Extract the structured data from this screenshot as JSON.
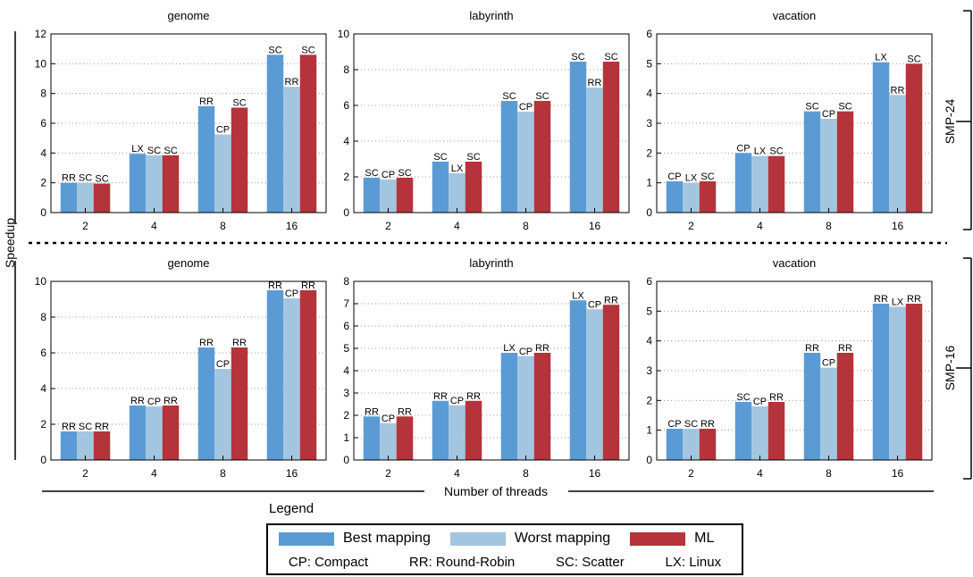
{
  "chart_data": [
    {
      "type": "bar",
      "title": "genome",
      "group": "SMP-24",
      "categories": [
        "2",
        "4",
        "8",
        "16"
      ],
      "ylim": [
        0,
        12
      ],
      "yticks": [
        0,
        2,
        4,
        6,
        8,
        10,
        12
      ],
      "series": [
        {
          "name": "Best mapping",
          "values": [
            2.0,
            3.95,
            7.15,
            10.6
          ],
          "labels": [
            "RR",
            "LX",
            "RR",
            "SC"
          ]
        },
        {
          "name": "Worst mapping",
          "values": [
            2.0,
            3.85,
            5.25,
            8.45
          ],
          "labels": [
            "SC",
            "SC",
            "CP",
            "RR"
          ]
        },
        {
          "name": "ML",
          "values": [
            1.95,
            3.85,
            7.05,
            10.6
          ],
          "labels": [
            "SC",
            "SC",
            "SC",
            "SC"
          ]
        }
      ]
    },
    {
      "type": "bar",
      "title": "labyrinth",
      "group": "SMP-24",
      "categories": [
        "2",
        "4",
        "8",
        "16"
      ],
      "ylim": [
        0,
        10
      ],
      "yticks": [
        0,
        2,
        4,
        6,
        8,
        10
      ],
      "series": [
        {
          "name": "Best mapping",
          "values": [
            1.95,
            2.85,
            6.25,
            8.45
          ],
          "labels": [
            "SC",
            "SC",
            "SC",
            "SC"
          ]
        },
        {
          "name": "Worst mapping",
          "values": [
            1.85,
            2.2,
            5.65,
            7.0
          ],
          "labels": [
            "CP",
            "LX",
            "CP",
            "RR"
          ]
        },
        {
          "name": "ML",
          "values": [
            1.95,
            2.85,
            6.25,
            8.45
          ],
          "labels": [
            "SC",
            "SC",
            "SC",
            "SC"
          ]
        }
      ]
    },
    {
      "type": "bar",
      "title": "vacation",
      "group": "SMP-24",
      "categories": [
        "2",
        "4",
        "8",
        "16"
      ],
      "ylim": [
        0,
        6
      ],
      "yticks": [
        0,
        1,
        2,
        3,
        4,
        5,
        6
      ],
      "series": [
        {
          "name": "Best mapping",
          "values": [
            1.05,
            2.0,
            3.4,
            5.05
          ],
          "labels": [
            "CP",
            "CP",
            "SC",
            "LX"
          ]
        },
        {
          "name": "Worst mapping",
          "values": [
            1.0,
            1.9,
            3.15,
            3.95
          ],
          "labels": [
            "LX",
            "LX",
            "CP",
            "RR"
          ]
        },
        {
          "name": "ML",
          "values": [
            1.05,
            1.9,
            3.4,
            5.0
          ],
          "labels": [
            "SC",
            "SC",
            "SC",
            "SC"
          ]
        }
      ]
    },
    {
      "type": "bar",
      "title": "genome",
      "group": "SMP-16",
      "categories": [
        "2",
        "4",
        "8",
        "16"
      ],
      "ylim": [
        0,
        10
      ],
      "yticks": [
        0,
        2,
        4,
        6,
        8,
        10
      ],
      "series": [
        {
          "name": "Best mapping",
          "values": [
            1.6,
            3.05,
            6.3,
            9.5
          ],
          "labels": [
            "RR",
            "RR",
            "RR",
            "RR"
          ]
        },
        {
          "name": "Worst mapping",
          "values": [
            1.6,
            3.0,
            5.1,
            9.05
          ],
          "labels": [
            "SC",
            "CP",
            "CP",
            "CP"
          ]
        },
        {
          "name": "ML",
          "values": [
            1.6,
            3.05,
            6.3,
            9.5
          ],
          "labels": [
            "RR",
            "RR",
            "RR",
            "RR"
          ]
        }
      ]
    },
    {
      "type": "bar",
      "title": "labyrinth",
      "group": "SMP-16",
      "categories": [
        "2",
        "4",
        "8",
        "16"
      ],
      "ylim": [
        0,
        8
      ],
      "yticks": [
        0,
        1,
        2,
        3,
        4,
        5,
        6,
        7,
        8
      ],
      "series": [
        {
          "name": "Best mapping",
          "values": [
            1.95,
            2.65,
            4.8,
            7.15
          ],
          "labels": [
            "RR",
            "RR",
            "LX",
            "LX"
          ]
        },
        {
          "name": "Worst mapping",
          "values": [
            1.65,
            2.45,
            4.65,
            6.75
          ],
          "labels": [
            "CP",
            "CP",
            "CP",
            "CP"
          ]
        },
        {
          "name": "ML",
          "values": [
            1.95,
            2.65,
            4.8,
            6.95
          ],
          "labels": [
            "RR",
            "RR",
            "RR",
            "RR"
          ]
        }
      ]
    },
    {
      "type": "bar",
      "title": "vacation",
      "group": "SMP-16",
      "categories": [
        "2",
        "4",
        "8",
        "16"
      ],
      "ylim": [
        0,
        6
      ],
      "yticks": [
        0,
        1,
        2,
        3,
        4,
        5,
        6
      ],
      "series": [
        {
          "name": "Best mapping",
          "values": [
            1.05,
            1.95,
            3.6,
            5.25
          ],
          "labels": [
            "CP",
            "SC",
            "RR",
            "RR"
          ]
        },
        {
          "name": "Worst mapping",
          "values": [
            1.05,
            1.8,
            3.1,
            5.15
          ],
          "labels": [
            "SC",
            "CP",
            "CP",
            "LX"
          ]
        },
        {
          "name": "ML",
          "values": [
            1.05,
            1.95,
            3.6,
            5.25
          ],
          "labels": [
            "RR",
            "RR",
            "RR",
            "RR"
          ]
        }
      ]
    }
  ],
  "colors": {
    "best": "#5b9bd5",
    "worst": "#a3c6e0",
    "ml": "#b5333a"
  },
  "ylabel": "Speedup",
  "xlabel": "Number of threads",
  "group_labels": {
    "top": "SMP-24",
    "bottom": "SMP-16"
  },
  "legend": {
    "title": "Legend",
    "items": [
      "Best mapping",
      "Worst mapping",
      "ML"
    ],
    "abbreviations": [
      "CP: Compact",
      "RR: Round-Robin",
      "SC: Scatter",
      "LX: Linux"
    ]
  },
  "grid": true
}
